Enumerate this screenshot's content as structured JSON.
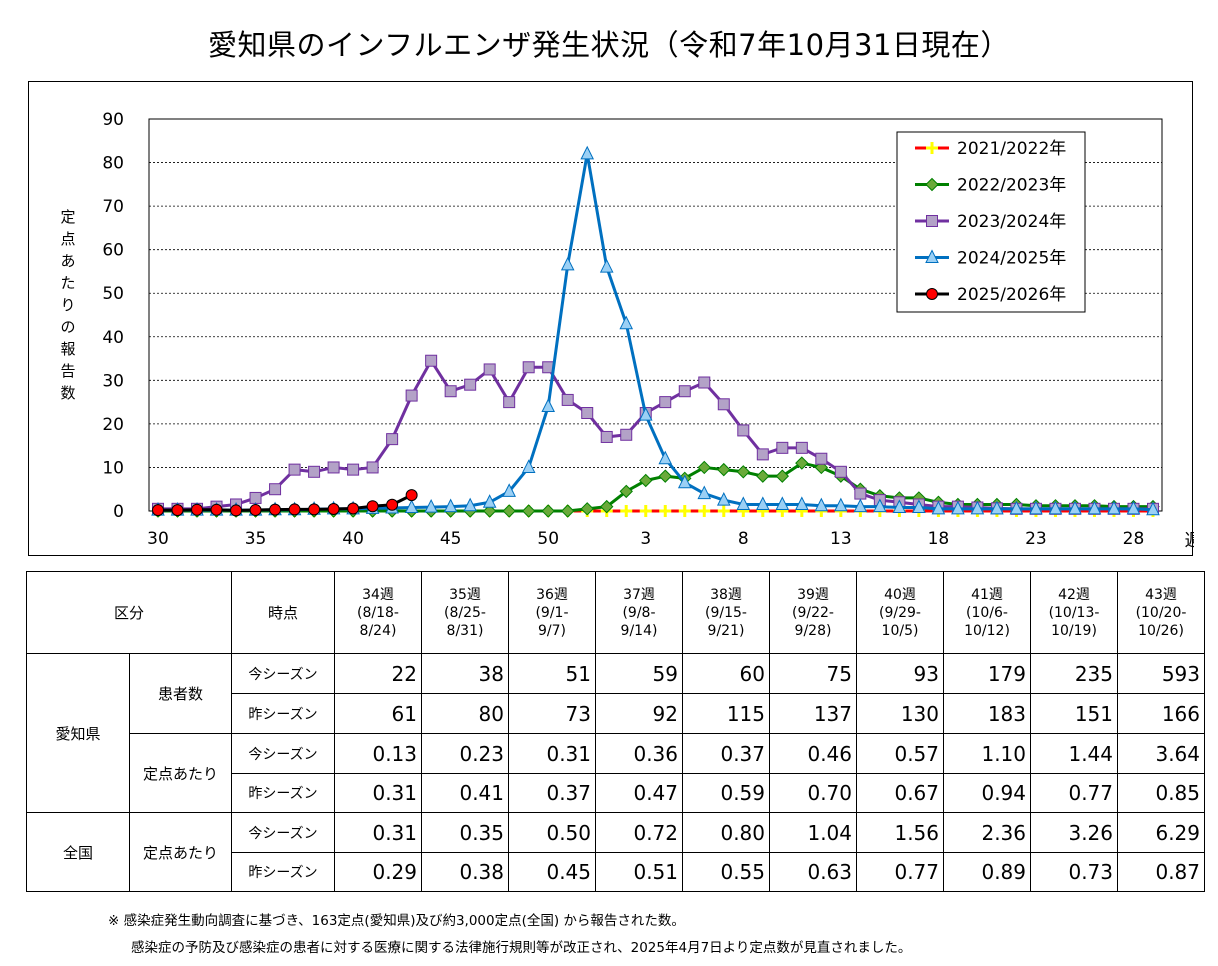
{
  "title": "愛知県のインフルエンザ発生状況（令和7年10月31日現在）",
  "chart_data": {
    "type": "line",
    "ylabel": "定点あたりの報告数",
    "xlabel": "週",
    "ylim": [
      0,
      90
    ],
    "y_ticks": [
      "0",
      "10",
      "20",
      "30",
      "40",
      "50",
      "60",
      "70",
      "80",
      "90"
    ],
    "x_tick_labels": [
      "30",
      "35",
      "40",
      "45",
      "50",
      "3",
      "8",
      "13",
      "18",
      "23",
      "28"
    ],
    "x_weeks": [
      "30",
      "31",
      "32",
      "33",
      "34",
      "35",
      "36",
      "37",
      "38",
      "39",
      "40",
      "41",
      "42",
      "43",
      "44",
      "45",
      "46",
      "47",
      "48",
      "49",
      "50",
      "51",
      "52",
      "1",
      "2",
      "3",
      "4",
      "5",
      "6",
      "7",
      "8",
      "9",
      "10",
      "11",
      "12",
      "13",
      "14",
      "15",
      "16",
      "17",
      "18",
      "19",
      "20",
      "21",
      "22",
      "23",
      "24",
      "25",
      "26",
      "27",
      "28",
      "29"
    ],
    "legend_position": "top-right",
    "series": [
      {
        "name": "2021/2022年",
        "color": "#ff0000",
        "marker": "plus",
        "marker_fill": "#ffff00",
        "values": [
          0,
          0,
          0,
          0,
          0,
          0,
          0,
          0,
          0,
          0,
          0,
          0,
          0,
          0,
          0,
          0,
          0,
          0,
          0,
          0,
          0,
          0,
          0,
          0,
          0,
          0,
          0,
          0,
          0,
          0,
          0,
          0,
          0,
          0,
          0,
          0,
          0,
          0,
          0,
          0,
          0,
          0,
          0,
          0,
          0,
          0,
          0,
          0,
          0,
          0,
          0,
          0
        ]
      },
      {
        "name": "2022/2023年",
        "color": "#008000",
        "marker": "diamond",
        "marker_fill": "#6aaa3a",
        "values": [
          0,
          0,
          0,
          0,
          0,
          0,
          0,
          0,
          0,
          0,
          0,
          0,
          0,
          0,
          0,
          0,
          0,
          0,
          0,
          0,
          0,
          0,
          0.5,
          1,
          4.5,
          7,
          8,
          7.5,
          10,
          9.5,
          9,
          8,
          8,
          11,
          10,
          8,
          5,
          3.5,
          3,
          3,
          2,
          1.5,
          1.5,
          1.5,
          1.5,
          1.2,
          1.2,
          1.2,
          1.2,
          1,
          1,
          1
        ]
      },
      {
        "name": "2023/2024年",
        "color": "#7030a0",
        "marker": "square",
        "marker_fill": "#b3a2c7",
        "values": [
          0.5,
          0.5,
          0.5,
          1,
          1.5,
          3,
          5,
          9.5,
          9,
          10,
          9.5,
          10,
          16.5,
          26.5,
          34.5,
          27.5,
          29,
          32.5,
          25,
          33,
          33,
          25.5,
          22.5,
          17,
          17.5,
          22.5,
          25,
          27.5,
          29.5,
          24.5,
          18.5,
          13,
          14.5,
          14.5,
          12,
          9,
          4,
          2.5,
          2,
          1.5,
          1,
          1,
          0.8,
          0.6,
          0.5,
          0.5,
          0.5,
          0.5,
          0.5,
          0.5,
          0.5,
          0.5
        ]
      },
      {
        "name": "2024/2025年",
        "color": "#0070c0",
        "marker": "triangle",
        "marker_fill": "#9bd0f5",
        "values": [
          0.2,
          0.2,
          0.2,
          0.2,
          0.2,
          0.2,
          0.3,
          0.3,
          0.4,
          0.5,
          0.5,
          0.6,
          0.7,
          0.8,
          0.9,
          1,
          1.2,
          2,
          4.5,
          10,
          24,
          56.5,
          82,
          56,
          43,
          22,
          12,
          6.5,
          4,
          2.5,
          1.5,
          1.5,
          1.5,
          1.5,
          1.2,
          1.2,
          1,
          1,
          0.8,
          0.8,
          0.5,
          0.5,
          0.5,
          0.5,
          0.5,
          0.5,
          0.5,
          0.5,
          0.5,
          0.5,
          0.5,
          0.3
        ]
      },
      {
        "name": "2025/2026年",
        "color": "#000000",
        "marker": "circle",
        "marker_fill": "#ff0000",
        "values": [
          0.2,
          0.2,
          0.3,
          0.3,
          0.13,
          0.23,
          0.31,
          0.36,
          0.37,
          0.46,
          0.57,
          1.1,
          1.44,
          3.64
        ]
      }
    ]
  },
  "table": {
    "header_category": "区分",
    "header_time": "時点",
    "weeks": [
      {
        "week": "34週",
        "range1": "(8/18-",
        "range2": "8/24)"
      },
      {
        "week": "35週",
        "range1": "(8/25-",
        "range2": "8/31)"
      },
      {
        "week": "36週",
        "range1": "(9/1-",
        "range2": "9/7)"
      },
      {
        "week": "37週",
        "range1": "(9/8-",
        "range2": "9/14)"
      },
      {
        "week": "38週",
        "range1": "(9/15-",
        "range2": "9/21)"
      },
      {
        "week": "39週",
        "range1": "(9/22-",
        "range2": "9/28)"
      },
      {
        "week": "40週",
        "range1": "(9/29-",
        "range2": "10/5)"
      },
      {
        "week": "41週",
        "range1": "(10/6-",
        "range2": "10/12)"
      },
      {
        "week": "42週",
        "range1": "(10/13-",
        "range2": "10/19)"
      },
      {
        "week": "43週",
        "range1": "(10/20-",
        "range2": "10/26)"
      }
    ],
    "aichi": "愛知県",
    "zenkoku": "全国",
    "patients": "患者数",
    "per_point": "定点あたり",
    "this_season": "今シーズン",
    "last_season": "昨シーズン",
    "rows": {
      "aichi_patients_now": [
        "22",
        "38",
        "51",
        "59",
        "60",
        "75",
        "93",
        "179",
        "235",
        "593"
      ],
      "aichi_patients_prev": [
        "61",
        "80",
        "73",
        "92",
        "115",
        "137",
        "130",
        "183",
        "151",
        "166"
      ],
      "aichi_per_now": [
        "0.13",
        "0.23",
        "0.31",
        "0.36",
        "0.37",
        "0.46",
        "0.57",
        "1.10",
        "1.44",
        "3.64"
      ],
      "aichi_per_prev": [
        "0.31",
        "0.41",
        "0.37",
        "0.47",
        "0.59",
        "0.70",
        "0.67",
        "0.94",
        "0.77",
        "0.85"
      ],
      "national_per_now": [
        "0.31",
        "0.35",
        "0.50",
        "0.72",
        "0.80",
        "1.04",
        "1.56",
        "2.36",
        "3.26",
        "6.29"
      ],
      "national_per_prev": [
        "0.29",
        "0.38",
        "0.45",
        "0.51",
        "0.55",
        "0.63",
        "0.77",
        "0.89",
        "0.73",
        "0.87"
      ]
    }
  },
  "footnote1": "※ 感染症発生動向調査に基づき、163定点(愛知県)及び約3,000定点(全国) から報告された数。",
  "footnote2": "感染症の予防及び感染症の患者に対する医療に関する法律施行規則等が改正され、2025年4月7日より定点数が見直されました。"
}
